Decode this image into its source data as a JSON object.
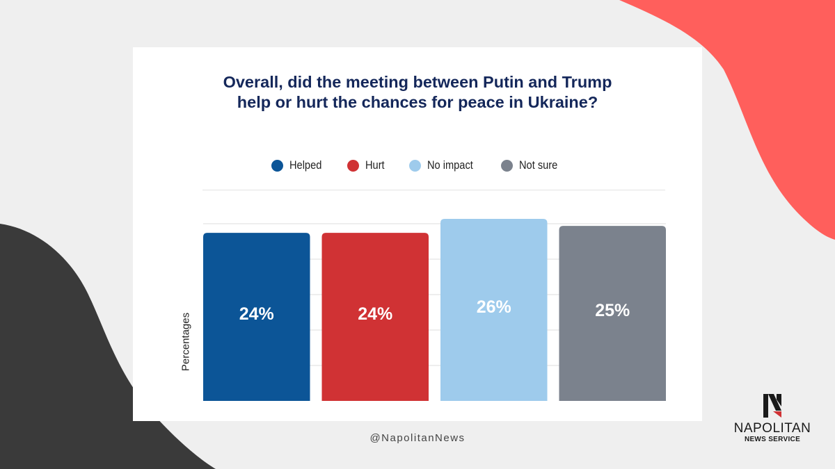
{
  "handle": "@NapolitanNews",
  "brand": {
    "name": "NAPOLITAN",
    "subtitle": "NEWS SERVICE"
  },
  "colors": {
    "title": "#14275a",
    "coral": "#ff5f5c",
    "charcoal": "#3a3a3a",
    "background": "#efefef"
  },
  "chart_data": {
    "type": "bar",
    "title_lines": [
      "Overall, did the meeting between Putin and Trump",
      "help or hurt the chances for peace in Ukraine?"
    ],
    "xlabel": "",
    "ylabel": "Percentages",
    "ylim": [
      0,
      26
    ],
    "grid": true,
    "legend_position": "top",
    "categories": [
      "Helped",
      "Hurt",
      "No impact",
      "Not sure"
    ],
    "values": [
      24,
      24,
      26,
      25
    ],
    "value_labels": [
      "24%",
      "24%",
      "26%",
      "25%"
    ],
    "colors": [
      "#0c5597",
      "#d03234",
      "#9ecbec",
      "#7b828d"
    ],
    "legend": [
      {
        "label": "Helped",
        "color": "#0c5597"
      },
      {
        "label": "Hurt",
        "color": "#d03234"
      },
      {
        "label": "No impact",
        "color": "#9ecbec"
      },
      {
        "label": "Not sure",
        "color": "#7b828d"
      }
    ]
  }
}
